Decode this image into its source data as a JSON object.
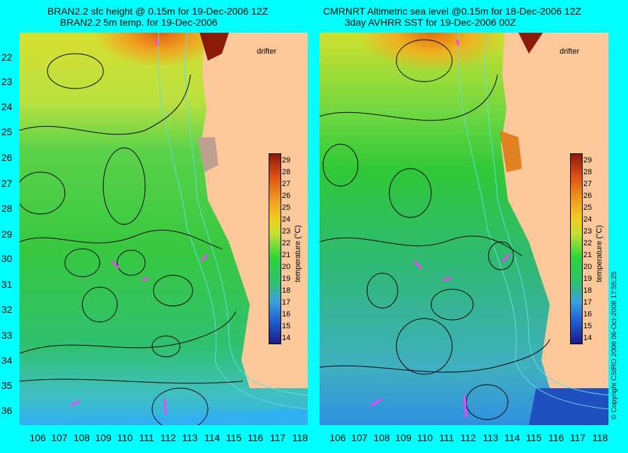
{
  "left_panel": {
    "title_line1": "BRAN2.2 sfc height @ 0.15m for 19-Dec-2006 12Z",
    "title_line2": "BRAN2.2 5m temp. for 19-Dec-2006",
    "drifter_label": "drifter"
  },
  "right_panel": {
    "title_line1": "CMRNRT Altimetric sea level  @0.15m  for 18-Dec-2006 12Z",
    "title_line2": "3day AVHRR SST for 19-Dec-2006 00Z",
    "drifter_label": "drifter"
  },
  "latitude_labels": [
    "22",
    "23",
    "24",
    "25",
    "26",
    "27",
    "28",
    "29",
    "30",
    "31",
    "32",
    "33",
    "34",
    "35",
    "36"
  ],
  "longitude_labels": [
    "106",
    "107",
    "108",
    "109",
    "110",
    "111",
    "112",
    "113",
    "114",
    "115",
    "116",
    "117",
    "118"
  ],
  "colorbar": {
    "title": "temperature (°C)",
    "ticks": [
      "29",
      "28",
      "27",
      "26",
      "25",
      "24",
      "23",
      "22",
      "21",
      "20",
      "19",
      "18",
      "17",
      "16",
      "15",
      "14"
    ],
    "range_c": [
      13.5,
      29.5
    ],
    "colors": {
      "cold": "#1a1a8a",
      "cool": "#3aa0e0",
      "mid": "#2bd63a",
      "warm": "#f0d020",
      "hot": "#8c1a0a"
    }
  },
  "copyright": "© Copyright CSIRO 2006   06-Oct-2008 17:55:25",
  "colors": {
    "background": "#00ffff",
    "land": "#fcc89a",
    "drifter_track": "#ff3cff",
    "contour": "#000000",
    "bathymetry": "#60e0e0"
  }
}
